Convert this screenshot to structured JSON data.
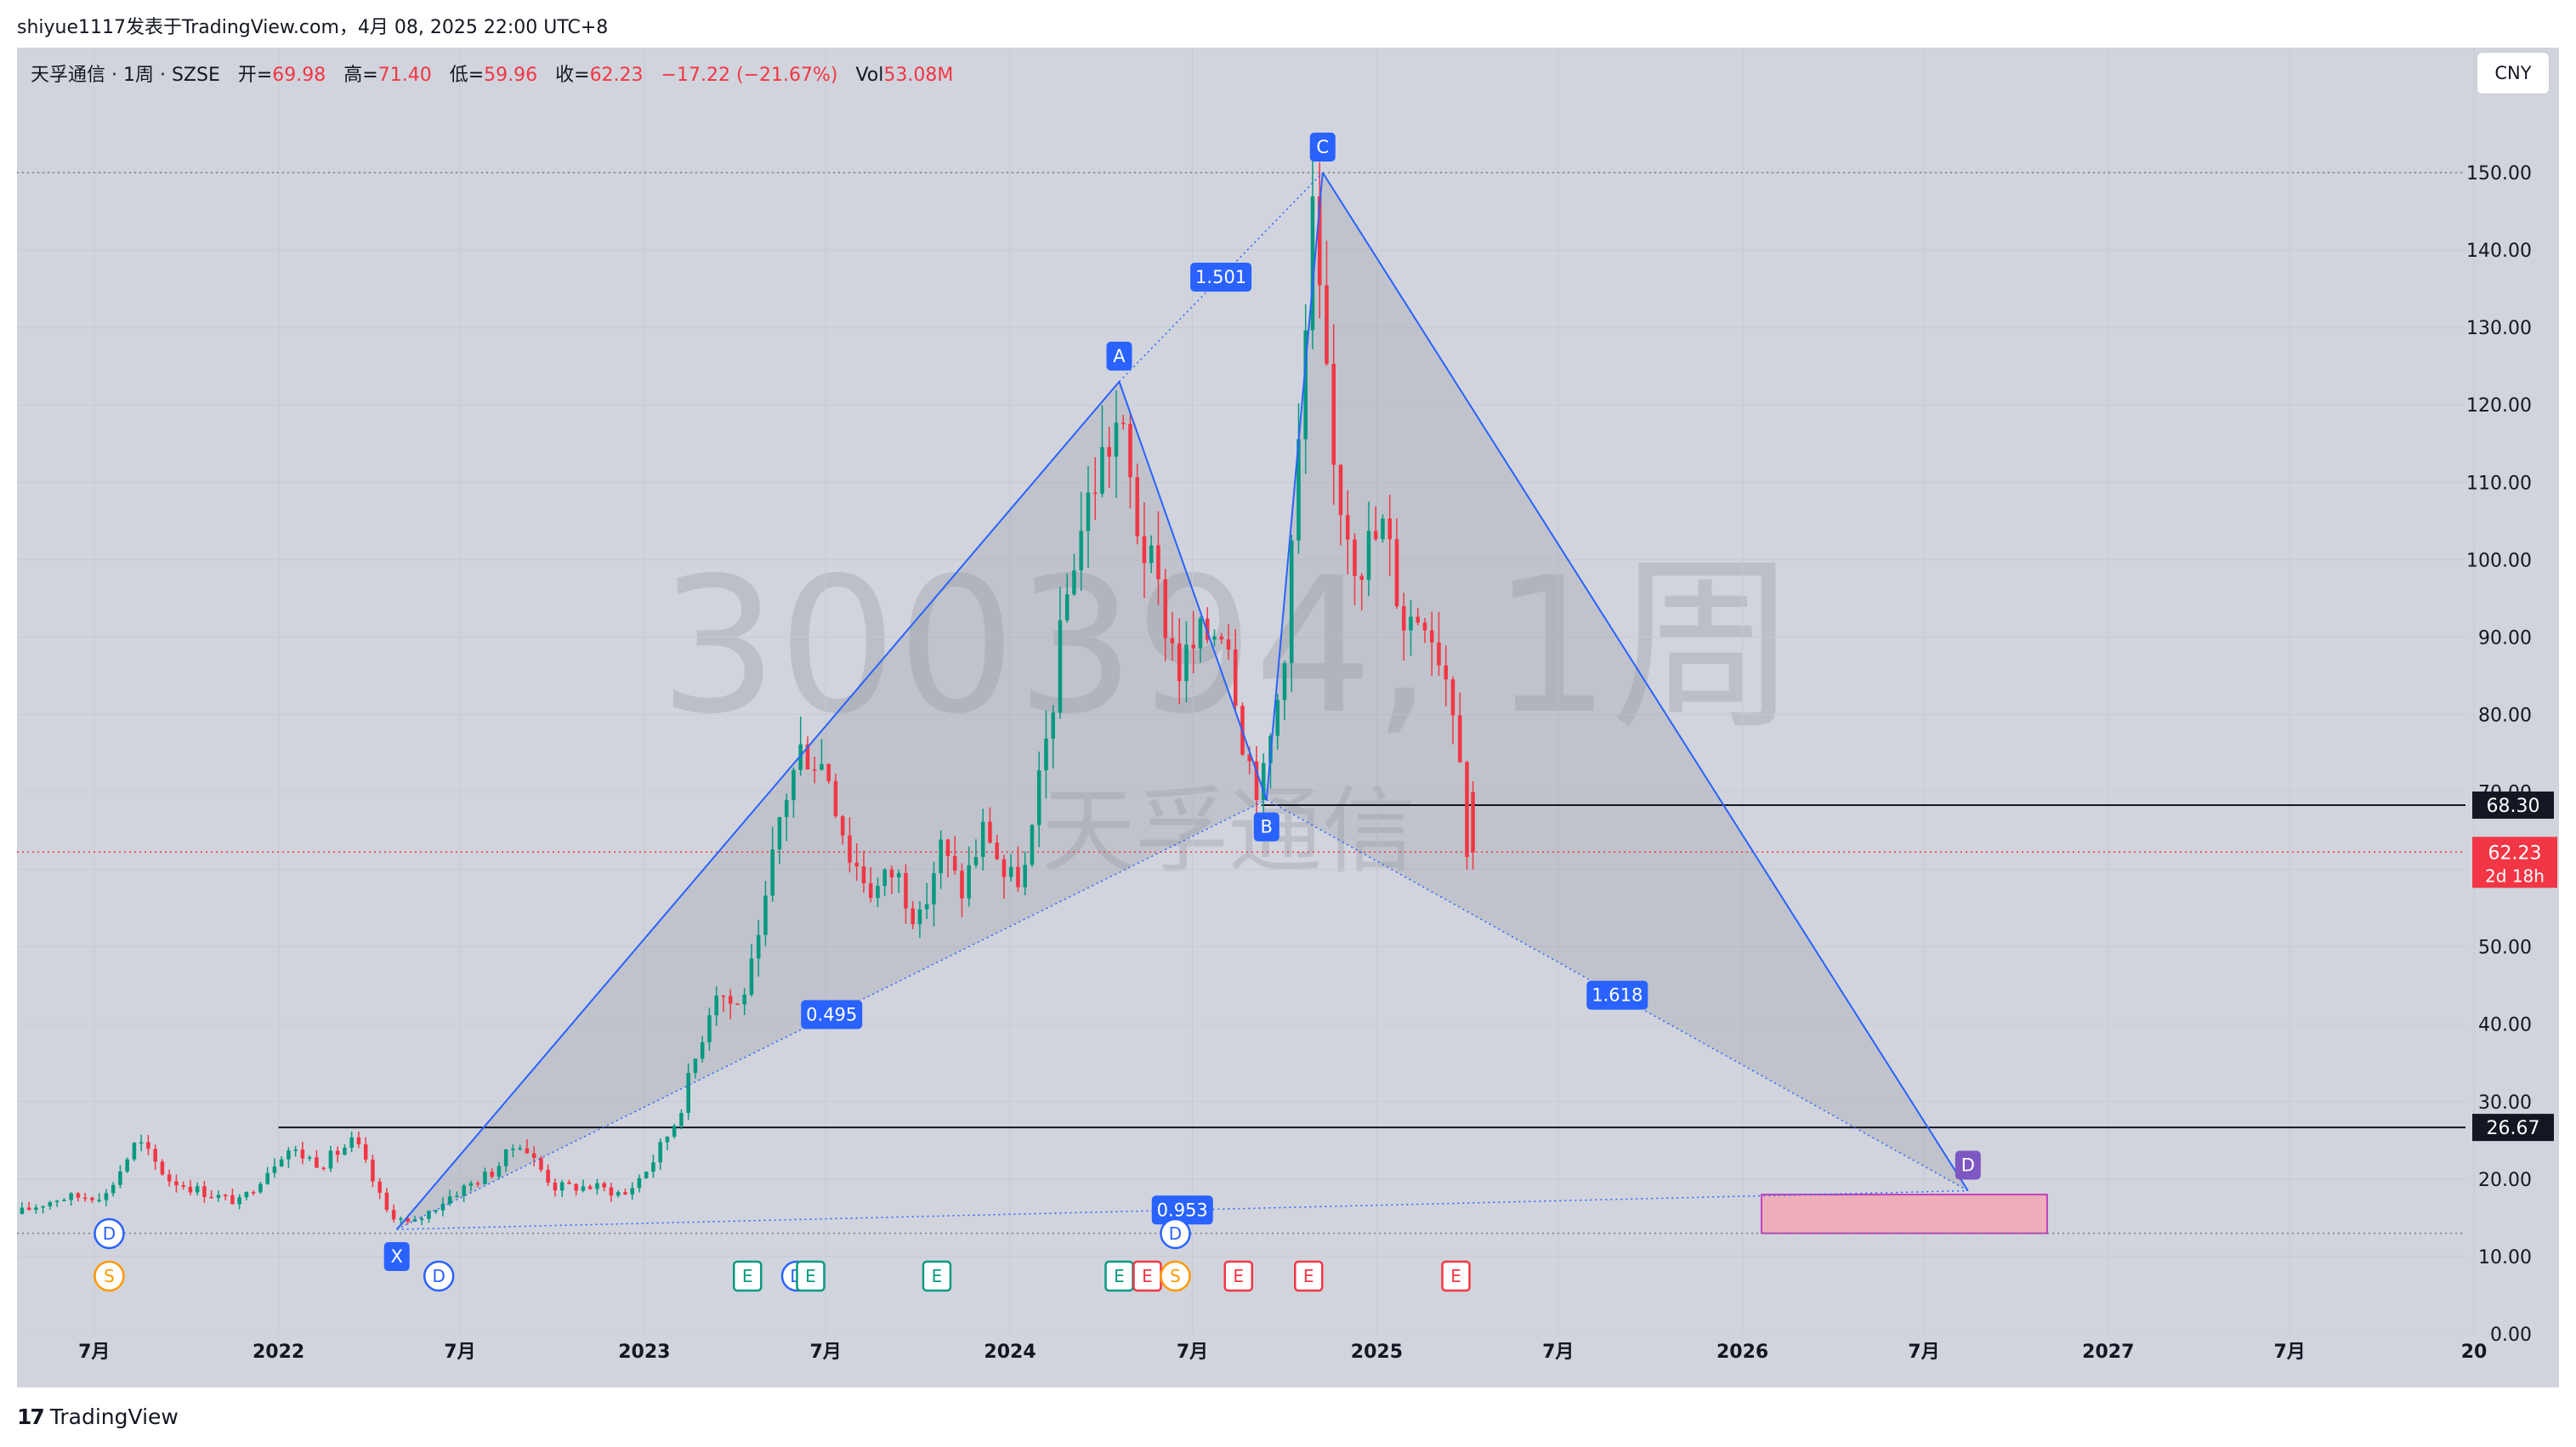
{
  "header": {
    "publisher_line": "shiyue1117发表于TradingView.com，4月 08, 2025 22:00 UTC+8"
  },
  "symbol_bar": {
    "name": "天孚通信 · 1周 · SZSE",
    "open_label": "开=",
    "open": "69.98",
    "high_label": "高=",
    "high": "71.40",
    "low_label": "低=",
    "low": "59.96",
    "close_label": "收=",
    "close": "62.23",
    "change": "−17.22 (−21.67%)",
    "vol_label": "Vol",
    "vol": "53.08M",
    "currency_button": "CNY"
  },
  "watermark": {
    "big": "300394, 1周",
    "small": "天孚通信"
  },
  "footer": {
    "logo_mark": "17",
    "logo_text": "TradingView"
  },
  "colors": {
    "background": "#d1d4dc",
    "up": "#089981",
    "down": "#f23645",
    "pattern_line": "#2962ff",
    "pattern_fill": "#9598a1",
    "target_box": "#f7a1ae"
  },
  "chart_data": {
    "type": "candlestick",
    "title": "天孚通信 · 1周 · SZSE",
    "x_axis": {
      "labels": [
        "7月",
        "2022",
        "7月",
        "2023",
        "7月",
        "2024",
        "7月",
        "2025",
        "7月",
        "2026",
        "7月",
        "2027",
        "7月",
        "20"
      ],
      "label_dates": [
        "2021-07-01",
        "2022-01-01",
        "2022-07-01",
        "2023-01-01",
        "2023-07-01",
        "2024-01-01",
        "2024-07-01",
        "2025-01-01",
        "2025-07-01",
        "2026-01-01",
        "2026-07-01",
        "2027-01-01",
        "2027-07-01",
        "2028-01-01"
      ]
    },
    "y_axis": {
      "ticks": [
        0,
        10,
        20,
        30,
        40,
        50,
        60,
        70,
        80,
        90,
        100,
        110,
        120,
        130,
        140,
        150
      ],
      "tick_labels": [
        "0.00",
        "10.00",
        "20.00",
        "30.00",
        "40.00",
        "50.00",
        "60.00",
        "70.00",
        "80.00",
        "90.00",
        "100.00",
        "110.00",
        "120.00",
        "130.00",
        "140.00",
        "150.00"
      ],
      "range": [
        -2,
        160
      ]
    },
    "price_path": [
      [
        "2021-04-20",
        15.5
      ],
      [
        "2021-06-01",
        17.5
      ],
      [
        "2021-07-20",
        18
      ],
      [
        "2021-08-20",
        25
      ],
      [
        "2021-09-20",
        20
      ],
      [
        "2021-11-01",
        18
      ],
      [
        "2021-12-01",
        17
      ],
      [
        "2022-01-15",
        24
      ],
      [
        "2022-02-20",
        22
      ],
      [
        "2022-03-25",
        25
      ],
      [
        "2022-04-25",
        16
      ],
      [
        "2022-05-20",
        14
      ],
      [
        "2022-06-30",
        18
      ],
      [
        "2022-08-10",
        21
      ],
      [
        "2022-09-05",
        25
      ],
      [
        "2022-10-10",
        19
      ],
      [
        "2022-11-20",
        19
      ],
      [
        "2022-12-20",
        18
      ],
      [
        "2023-01-15",
        22
      ],
      [
        "2023-02-10",
        28
      ],
      [
        "2023-03-01",
        36
      ],
      [
        "2023-03-20",
        45
      ],
      [
        "2023-04-10",
        42
      ],
      [
        "2023-05-01",
        49
      ],
      [
        "2023-05-25",
        68
      ],
      [
        "2023-06-15",
        76
      ],
      [
        "2023-07-10",
        73
      ],
      [
        "2023-08-01",
        62
      ],
      [
        "2023-08-25",
        57
      ],
      [
        "2023-09-15",
        60
      ],
      [
        "2023-10-10",
        53
      ],
      [
        "2023-10-30",
        63
      ],
      [
        "2023-11-20",
        57
      ],
      [
        "2023-12-15",
        66
      ],
      [
        "2024-01-05",
        58
      ],
      [
        "2024-01-25",
        60
      ],
      [
        "2024-02-15",
        78
      ],
      [
        "2024-03-10",
        100
      ],
      [
        "2024-04-05",
        112
      ],
      [
        "2024-04-25",
        118
      ],
      [
        "2024-05-15",
        104
      ],
      [
        "2024-06-05",
        95
      ],
      [
        "2024-06-25",
        86
      ],
      [
        "2024-07-20",
        90
      ],
      [
        "2024-08-10",
        93
      ],
      [
        "2024-08-30",
        75
      ],
      [
        "2024-09-15",
        70
      ],
      [
        "2024-10-05",
        85
      ],
      [
        "2024-10-20",
        110
      ],
      [
        "2024-11-05",
        143
      ],
      [
        "2024-11-25",
        112
      ],
      [
        "2024-12-20",
        100
      ],
      [
        "2025-01-15",
        104
      ],
      [
        "2025-02-05",
        92
      ],
      [
        "2025-02-25",
        94
      ],
      [
        "2025-03-15",
        87
      ],
      [
        "2025-03-31",
        79
      ],
      [
        "2025-04-07",
        62.23
      ]
    ],
    "last_candle": {
      "date": "2025-04-07",
      "open": 69.98,
      "high": 71.4,
      "low": 59.96,
      "close": 62.23
    },
    "pattern": {
      "points": [
        {
          "label": "X",
          "date": "2022-04-29",
          "price": 13.5
        },
        {
          "label": "A",
          "date": "2024-04-19",
          "price": 123
        },
        {
          "label": "B",
          "date": "2024-09-13",
          "price": 69
        },
        {
          "label": "C",
          "date": "2024-11-08",
          "price": 150
        },
        {
          "label": "D",
          "date": "2026-08-14",
          "price": 18.5
        }
      ],
      "ratios": [
        {
          "value": "0.495",
          "from": "X",
          "to": "B"
        },
        {
          "value": "1.501",
          "from": "A",
          "to": "C"
        },
        {
          "value": "1.618",
          "from": "B",
          "to": "D"
        },
        {
          "value": "0.953",
          "from": "X",
          "to": "D"
        }
      ]
    },
    "target_zone": {
      "date_from": "2026-01-20",
      "date_to": "2026-11-01",
      "price_low": 13,
      "price_high": 18
    },
    "horizontal_lines": [
      {
        "price": 68.3,
        "label": "68.30",
        "from_date": "2024-09-08"
      },
      {
        "price": 26.67,
        "label": "26.67",
        "from_date": "2022-01-01"
      }
    ],
    "reference_lines": [
      {
        "price": 150
      },
      {
        "price": 13
      }
    ],
    "price_label": {
      "price": 62.23,
      "text": "62.23",
      "countdown": "2d 18h"
    },
    "event_markers": [
      {
        "date": "2021-07-16",
        "labels": [
          "D",
          "S"
        ]
      },
      {
        "date": "2022-06-10",
        "labels": [
          "D"
        ]
      },
      {
        "date": "2023-04-14",
        "labels": [
          "E"
        ]
      },
      {
        "date": "2023-06-02",
        "labels": [
          "D"
        ]
      },
      {
        "date": "2023-06-16",
        "labels": [
          "E"
        ]
      },
      {
        "date": "2023-10-20",
        "labels": [
          "E"
        ]
      },
      {
        "date": "2024-04-19",
        "labels": [
          "E"
        ]
      },
      {
        "date": "2024-05-17",
        "labels": [
          "E"
        ]
      },
      {
        "date": "2024-06-14",
        "labels": [
          "D",
          "S"
        ]
      },
      {
        "date": "2024-08-16",
        "labels": [
          "E"
        ]
      },
      {
        "date": "2024-10-25",
        "labels": [
          "E"
        ]
      },
      {
        "date": "2025-03-21",
        "labels": [
          "E"
        ]
      }
    ]
  }
}
